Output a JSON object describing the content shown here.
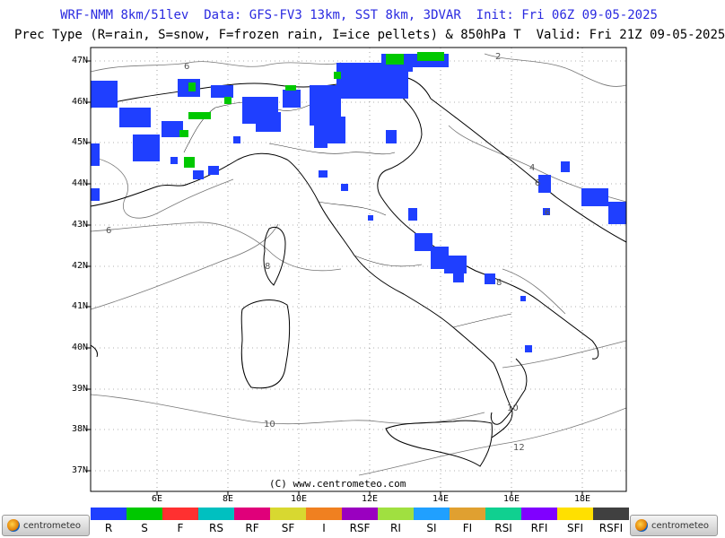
{
  "header": {
    "line1": "WRF-NMM 8km/51lev  Data: GFS-FV3 13km, SST 8km, 3DVAR  Init: Fri 06Z 09-05-2025",
    "line2": "Prec Type (R=rain, S=snow, F=frozen rain, I=ice pellets) & 850hPa T  Valid: Fri 21Z 09-05-2025"
  },
  "lat_labels": [
    "47N",
    "46N",
    "45N",
    "44N",
    "43N",
    "42N",
    "41N",
    "40N",
    "39N",
    "38N",
    "37N"
  ],
  "lon_labels": [
    "6E",
    "8E",
    "10E",
    "12E",
    "14E",
    "16E",
    "18E"
  ],
  "isotherm_labels": [
    "6",
    "4",
    "2",
    "6",
    "6",
    "6",
    "8",
    "8",
    "10",
    "10",
    "12"
  ],
  "credit": "(C) www.centrometeo.com",
  "legend": [
    {
      "label": "R",
      "color": "#1f3fff"
    },
    {
      "label": "S",
      "color": "#00c800"
    },
    {
      "label": "F",
      "color": "#ff3030"
    },
    {
      "label": "RS",
      "color": "#00c0c0"
    },
    {
      "label": "RF",
      "color": "#e0007a"
    },
    {
      "label": "SF",
      "color": "#d8d830"
    },
    {
      "label": "I",
      "color": "#f08020"
    },
    {
      "label": "RSF",
      "color": "#9a00c0"
    },
    {
      "label": "RI",
      "color": "#a0e040"
    },
    {
      "label": "SI",
      "color": "#20a0ff"
    },
    {
      "label": "FI",
      "color": "#e0a030"
    },
    {
      "label": "RSI",
      "color": "#10d090"
    },
    {
      "label": "RFI",
      "color": "#8000ff"
    },
    {
      "label": "SFI",
      "color": "#ffe000"
    },
    {
      "label": "RSFI",
      "color": "#404040"
    }
  ],
  "logo_text": "centrometeo"
}
